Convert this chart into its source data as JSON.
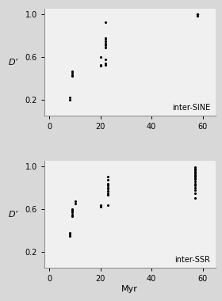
{
  "panel1_label": "inter-SINE",
  "panel2_label": "inter-SSR",
  "xlabel": "Myr",
  "ylabel": "D’",
  "xlim": [
    -2,
    65
  ],
  "ylim": [
    0.05,
    1.05
  ],
  "xticks": [
    0,
    20,
    40,
    60
  ],
  "yticks": [
    0.2,
    0.6,
    1.0
  ],
  "panel1_data": {
    "x": [
      8,
      8,
      9,
      9,
      9,
      9,
      9,
      20,
      20,
      20,
      22,
      22,
      22,
      22,
      22,
      22,
      22,
      22,
      22,
      22,
      58,
      58,
      58,
      58,
      58,
      58,
      58,
      58,
      58,
      58,
      58,
      58,
      58,
      58,
      58,
      58,
      58,
      58,
      58
    ],
    "y": [
      0.22,
      0.2,
      0.43,
      0.45,
      0.47,
      0.42,
      0.43,
      0.6,
      0.52,
      0.53,
      0.58,
      0.54,
      0.53,
      0.69,
      0.71,
      0.73,
      0.75,
      0.77,
      0.78,
      0.93,
      0.99,
      0.99,
      1.0,
      1.0,
      1.0,
      1.0,
      1.0,
      1.0,
      1.0,
      1.0,
      1.0,
      1.0,
      1.0,
      1.0,
      1.0,
      1.0,
      1.0,
      1.0,
      1.0
    ]
  },
  "panel2_data": {
    "x": [
      8,
      8,
      8,
      9,
      9,
      9,
      9,
      9,
      9,
      10,
      10,
      20,
      20,
      20,
      23,
      23,
      23,
      23,
      23,
      23,
      23,
      23,
      23,
      23,
      57,
      57,
      57,
      57,
      57,
      57,
      57,
      57,
      57,
      57,
      57,
      57,
      57,
      57,
      57,
      57,
      57,
      57,
      57
    ],
    "y": [
      0.35,
      0.38,
      0.36,
      0.53,
      0.55,
      0.57,
      0.58,
      0.59,
      0.6,
      0.65,
      0.67,
      0.62,
      0.63,
      0.64,
      0.64,
      0.73,
      0.75,
      0.77,
      0.79,
      0.8,
      0.82,
      0.84,
      0.87,
      0.9,
      0.7,
      0.75,
      0.78,
      0.8,
      0.82,
      0.84,
      0.86,
      0.88,
      0.89,
      0.9,
      0.91,
      0.92,
      0.93,
      0.94,
      0.95,
      0.96,
      0.97,
      0.98,
      0.99
    ]
  },
  "dot_color": "#000000",
  "dot_size": 5,
  "background_color": "#f0f0f0",
  "axes_bg": "#f0f0f0"
}
